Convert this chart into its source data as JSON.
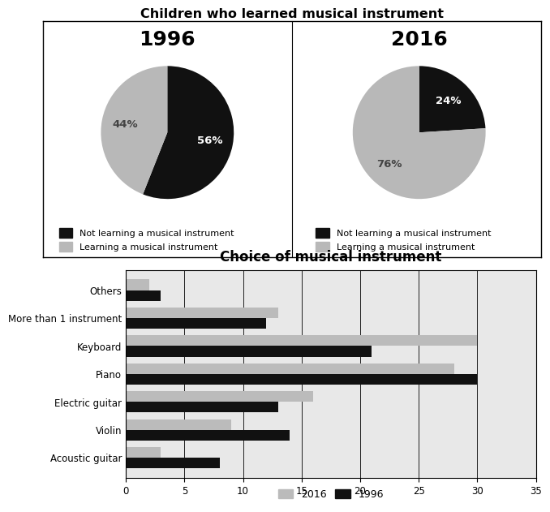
{
  "pie_title": "Children who learned musical instrument",
  "bar_title": "Choice of musical instrument",
  "pie_1996": {
    "not_learning": 56,
    "learning": 44,
    "year": "1996"
  },
  "pie_2016": {
    "not_learning": 24,
    "learning": 76,
    "year": "2016"
  },
  "pie_colors_1996": [
    "#111111",
    "#b8b8b8"
  ],
  "pie_colors_2016": [
    "#111111",
    "#b8b8b8"
  ],
  "pie_pct_colors_1996": [
    "white",
    "#444444"
  ],
  "pie_pct_colors_2016": [
    "white",
    "#444444"
  ],
  "bar_categories": [
    "Acoustic guitar",
    "Violin",
    "Electric guitar",
    "Piano",
    "Keyboard",
    "More than 1 instrument",
    "Others"
  ],
  "bar_1996": [
    8,
    14,
    13,
    30,
    21,
    12,
    3
  ],
  "bar_2016": [
    3,
    9,
    16,
    28,
    30,
    13,
    2
  ],
  "bar_color_1996": "#111111",
  "bar_color_2016": "#bbbbbb",
  "bar_xlim": [
    0,
    35
  ],
  "bar_xticks": [
    0,
    5,
    10,
    15,
    20,
    25,
    30,
    35
  ],
  "legend_not_learning": "Not learning a musical instrument",
  "legend_learning": "Learning a musical instrument",
  "legend_2016": "2016",
  "legend_1996": "1996",
  "bar_bg": "#e8e8e8"
}
